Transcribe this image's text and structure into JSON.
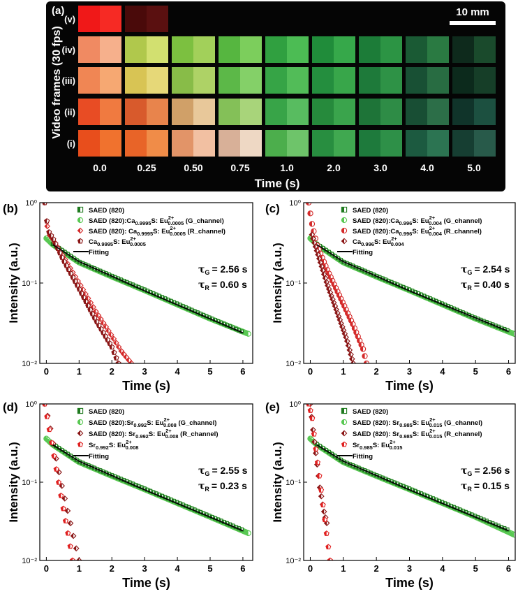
{
  "panel_a": {
    "tag": "(a)",
    "scale_bar_label": "10 mm",
    "y_title": "Video frames (30 fps)",
    "x_title": "Time (s)",
    "time_labels": [
      "0.0",
      "0.25",
      "0.50",
      "0.75",
      "1.0",
      "2.0",
      "3.0",
      "4.0",
      "5.0"
    ],
    "row_labels": [
      "(v)",
      "(iv)",
      "(iii)",
      "(ii)",
      "(i)"
    ],
    "rows": [
      {
        "label": "(v)",
        "frames": [
          [
            "#f01818",
            "#f62a24"
          ],
          [
            "#4a0a0a",
            "#5a1010"
          ]
        ]
      },
      {
        "label": "(iv)",
        "frames": [
          [
            "#f08a62",
            "#f6b08c"
          ],
          [
            "#b0c84c",
            "#d2e070"
          ],
          [
            "#7cc040",
            "#a2d05a"
          ],
          [
            "#56b640",
            "#7cce5c"
          ],
          [
            "#30a040",
            "#4cbc54"
          ],
          [
            "#208c3a",
            "#36a84a"
          ],
          [
            "#1c7c38",
            "#2c9444"
          ],
          [
            "#1a5a34",
            "#2a7a42"
          ],
          [
            "#0e2a1c",
            "#1a4a2c"
          ]
        ]
      },
      {
        "label": "(iii)",
        "frames": [
          [
            "#f08654",
            "#f6a872"
          ],
          [
            "#d8c454",
            "#e6d878"
          ],
          [
            "#88bc48",
            "#aed266"
          ],
          [
            "#5cb848",
            "#84d068"
          ],
          [
            "#36a446",
            "#52bc58"
          ],
          [
            "#248e3e",
            "#38a64a"
          ],
          [
            "#1e7a3a",
            "#2e9246"
          ],
          [
            "#185034",
            "#286c42"
          ],
          [
            "#0c2a1c",
            "#163e28"
          ]
        ]
      },
      {
        "label": "(ii)",
        "frames": [
          [
            "#e84c24",
            "#f07a40"
          ],
          [
            "#d85a2c",
            "#e8844c"
          ],
          [
            "#d0a068",
            "#e8c89a"
          ],
          [
            "#84c058",
            "#a8d47a"
          ],
          [
            "#38a448",
            "#58bc60"
          ],
          [
            "#268a3c",
            "#3aa44c"
          ],
          [
            "#1e7438",
            "#2e8c46"
          ],
          [
            "#184e34",
            "#2c6e48"
          ],
          [
            "#10342a",
            "#1c5040"
          ]
        ]
      },
      {
        "label": "(i)",
        "frames": [
          [
            "#e84e1c",
            "#f0722e"
          ],
          [
            "#e86428",
            "#f08c48"
          ],
          [
            "#e29468",
            "#f2c0a2"
          ],
          [
            "#d8b098",
            "#eed8c4"
          ],
          [
            "#4cae4c",
            "#6ec46a"
          ],
          [
            "#288e40",
            "#40a850"
          ],
          [
            "#1e7a3c",
            "#2e9048"
          ],
          [
            "#1c5a40",
            "#2c7452"
          ],
          [
            "#163e32",
            "#285a4a"
          ]
        ]
      }
    ]
  },
  "panels": [
    {
      "tag": "(b)",
      "ylabel": "Intensity (a.u.)",
      "xlabel": "Time (s)",
      "legend": [
        {
          "name": "SAED (820)",
          "marker": "square-half",
          "color": "#1f7a1f"
        },
        {
          "name": "SAED (820):Ca",
          "sub1": "0.9995",
          "mid": "S: Eu",
          "sup": "2+",
          "sub2": "0.0005",
          "tail": " (G_channel)",
          "marker": "circle-half",
          "color": "#59c853"
        },
        {
          "name": "SAED (820): Ca",
          "sub1": "0.9995",
          "mid": "S: Eu",
          "sup": "2+",
          "sub2": "0.0005",
          "tail": " (R_channel)",
          "marker": "diamond-half",
          "color": "#d42a2a"
        },
        {
          "name": "Ca",
          "sub1": "0.9995",
          "mid": "S: Eu",
          "sup": "2+",
          "sub2": "0.0005",
          "tail": "",
          "marker": "pentagon-half",
          "color": "#8a1515"
        },
        {
          "name": "Fitting",
          "marker": "line",
          "color": "#000000"
        }
      ],
      "tau_g": "= 2.56 s",
      "tau_r": "= 0.60 s",
      "xticks": [
        "0",
        "1",
        "2",
        "3",
        "4",
        "5",
        "6"
      ],
      "yticks": [
        "10⁻²",
        "10⁻¹",
        "10⁰"
      ]
    },
    {
      "tag": "(c)",
      "ylabel": "Intensity (a.u.)",
      "xlabel": "Time (s)",
      "legend": [
        {
          "name": "SAED (820)",
          "marker": "square-half",
          "color": "#1f7a1f"
        },
        {
          "name": "SAED (820):Ca",
          "sub1": "0.996",
          "mid": "S: Eu",
          "sup": "2+",
          "sub2": "0.004",
          "tail": " (G_channel)",
          "marker": "circle-half",
          "color": "#59c853"
        },
        {
          "name": "SAED (820):Ca",
          "sub1": "0.996",
          "mid": "S: Eu",
          "sup": "2+",
          "sub2": "0.004",
          "tail": " (R_channel)",
          "marker": "circle-half",
          "color": "#d42a2a"
        },
        {
          "name": "Ca",
          "sub1": "0.996",
          "mid": "S: Eu",
          "sup": "2+",
          "sub2": "0.004",
          "tail": "",
          "marker": "diamond-half",
          "color": "#8a1515"
        },
        {
          "name": "Fitting",
          "marker": "line",
          "color": "#000000"
        }
      ],
      "tau_g": "= 2.54 s",
      "tau_r": "= 0.40 s",
      "xticks": [
        "0",
        "1",
        "2",
        "3",
        "4",
        "5",
        "6"
      ],
      "yticks": [
        "10⁻²",
        "10⁻¹",
        "10⁰"
      ]
    },
    {
      "tag": "(d)",
      "ylabel": "Intensity (a.u.)",
      "xlabel": "Time (s)",
      "legend": [
        {
          "name": "SAED (820)",
          "marker": "square-half",
          "color": "#1f7a1f"
        },
        {
          "name": "SAED (820):Sr",
          "sub1": "0.992",
          "mid": "S: Eu",
          "sup": "2+",
          "sub2": "0.008",
          "tail": " (G_channel)",
          "marker": "circle-half",
          "color": "#59c853"
        },
        {
          "name": "SAED (820): Sr",
          "sub1": "0.992",
          "mid": "S: Eu",
          "sup": "2+",
          "sub2": "0.008",
          "tail": " (R_channel)",
          "marker": "diamond-half",
          "color": "#8a1515"
        },
        {
          "name": "Sr",
          "sub1": "0.992",
          "mid": "S: Eu",
          "sup": "2+",
          "sub2": "0.008",
          "tail": "",
          "marker": "pentagon-half",
          "color": "#e02020"
        },
        {
          "name": "Fitting",
          "marker": "line",
          "color": "#000000"
        }
      ],
      "tau_g": "= 2.55 s",
      "tau_r": "= 0.23 s",
      "xticks": [
        "0",
        "1",
        "2",
        "3",
        "4",
        "5",
        "6"
      ],
      "yticks": [
        "10⁻²",
        "10⁻¹",
        "10⁰"
      ]
    },
    {
      "tag": "(e)",
      "ylabel": "Intensity (a.u.)",
      "xlabel": "Time (s)",
      "legend": [
        {
          "name": "SAED (820)",
          "marker": "square-half",
          "color": "#1f7a1f"
        },
        {
          "name": "SAED (820): Sr",
          "sub1": "0.985",
          "mid": "S: Eu",
          "sup": "2+",
          "sub2": "0.015",
          "tail": " (G_channel)",
          "marker": "circle-half",
          "color": "#59c853"
        },
        {
          "name": "SAED (820): Sr",
          "sub1": "0.985",
          "mid": "S: Eu",
          "sup": "2+",
          "sub2": "0.015",
          "tail": " (R_channel)",
          "marker": "diamond-half",
          "color": "#8a1515"
        },
        {
          "name": "Sr",
          "sub1": "0.985",
          "mid": "S: Eu",
          "sup": "2+",
          "sub2": "0.015",
          "tail": "",
          "marker": "pentagon-half",
          "color": "#e02020"
        },
        {
          "name": "Fitting",
          "marker": "line",
          "color": "#000000"
        }
      ],
      "tau_g": "= 2.56 s",
      "tau_r": "= 0.15 s",
      "xticks": [
        "0",
        "1",
        "2",
        "3",
        "4",
        "5",
        "6"
      ],
      "yticks": [
        "10⁻²",
        "10⁻¹",
        "10⁰"
      ]
    }
  ],
  "chart_data": [
    {
      "type": "scatter",
      "panel": "(b)",
      "xlabel": "Time (s)",
      "ylabel": "Intensity (a.u.)",
      "xlim": [
        -0.2,
        6.3
      ],
      "ylim": [
        0.01,
        1
      ],
      "yscale": "log",
      "series": [
        {
          "name": "SAED (820)",
          "x": [
            0.2,
            1,
            2,
            3,
            4,
            5,
            6
          ],
          "y": [
            0.3,
            0.18,
            0.12,
            0.081,
            0.054,
            0.036,
            0.024
          ]
        },
        {
          "name": "SAED (820):Ca0.9995S: Eu2+0.0005 (G_channel)",
          "x": [
            0,
            0.2,
            1,
            2,
            3,
            4,
            5,
            6.2
          ],
          "y": [
            0.36,
            0.3,
            0.18,
            0.12,
            0.081,
            0.054,
            0.036,
            0.023
          ]
        },
        {
          "name": "SAED (820): Ca0.9995S: Eu2+0.0005 (R_channel)",
          "x": [
            -0.05,
            0.05,
            0.2,
            0.5,
            1,
            1.5,
            2,
            2.3,
            2.6
          ],
          "y": [
            1,
            0.42,
            0.35,
            0.22,
            0.1,
            0.045,
            0.022,
            0.014,
            0.01
          ]
        },
        {
          "name": "Ca0.9995S: Eu2+0.0005",
          "x": [
            -0.05,
            0.05,
            0.2,
            0.5,
            1,
            1.5,
            2,
            2.2
          ],
          "y": [
            1,
            0.45,
            0.36,
            0.2,
            0.085,
            0.035,
            0.016,
            0.01
          ]
        },
        {
          "name": "Fitting",
          "x": [
            0.2,
            6
          ],
          "y": [
            0.3,
            0.024
          ]
        }
      ]
    },
    {
      "type": "scatter",
      "panel": "(c)",
      "xlabel": "Time (s)",
      "ylabel": "Intensity (a.u.)",
      "xlim": [
        -0.2,
        6.2
      ],
      "ylim": [
        0.01,
        1
      ],
      "yscale": "log",
      "series": [
        {
          "name": "SAED (820)",
          "x": [
            0.2,
            1,
            2,
            3,
            4,
            5,
            6
          ],
          "y": [
            0.3,
            0.18,
            0.12,
            0.081,
            0.054,
            0.036,
            0.025
          ]
        },
        {
          "name": "SAED (820):Ca0.996S: Eu2+0.004 (G_channel)",
          "x": [
            0,
            0.2,
            1,
            2,
            3,
            4,
            5,
            6.2
          ],
          "y": [
            0.36,
            0.3,
            0.18,
            0.12,
            0.081,
            0.054,
            0.036,
            0.023
          ]
        },
        {
          "name": "SAED (820):Ca0.996S: Eu2+0.004 (R_channel)",
          "x": [
            -0.05,
            0.05,
            0.2,
            0.5,
            1,
            1.3,
            1.6,
            1.7
          ],
          "y": [
            1,
            0.55,
            0.3,
            0.15,
            0.055,
            0.03,
            0.015,
            0.01
          ]
        },
        {
          "name": "Ca0.996S: Eu2+0.004",
          "x": [
            0.05,
            0.2,
            0.5,
            0.8,
            1.1,
            1.3
          ],
          "y": [
            0.4,
            0.25,
            0.1,
            0.045,
            0.02,
            0.01
          ]
        },
        {
          "name": "Fitting",
          "x": [
            0.2,
            6
          ],
          "y": [
            0.3,
            0.025
          ]
        }
      ]
    },
    {
      "type": "scatter",
      "panel": "(d)",
      "xlabel": "Time (s)",
      "ylabel": "Intensity (a.u.)",
      "xlim": [
        -0.2,
        6.3
      ],
      "ylim": [
        0.01,
        1
      ],
      "yscale": "log",
      "series": [
        {
          "name": "SAED (820)",
          "x": [
            0.2,
            1,
            2,
            3,
            4,
            5,
            6
          ],
          "y": [
            0.3,
            0.18,
            0.12,
            0.081,
            0.054,
            0.036,
            0.024
          ]
        },
        {
          "name": "SAED (820):Sr0.992S: Eu2+0.008 (G_channel)",
          "x": [
            0,
            0.2,
            1,
            2,
            3,
            4,
            5,
            6.2
          ],
          "y": [
            0.36,
            0.3,
            0.18,
            0.12,
            0.081,
            0.054,
            0.036,
            0.022
          ]
        },
        {
          "name": "SAED (820): Sr0.992S: Eu2+0.008 (R_channel)",
          "x": [
            -0.05,
            0.1,
            0.3,
            0.5,
            0.7,
            0.9,
            1.0
          ],
          "y": [
            1,
            0.55,
            0.2,
            0.08,
            0.035,
            0.015,
            0.01
          ]
        },
        {
          "name": "Sr0.992S: Eu2+0.008",
          "x": [
            -0.05,
            0.1,
            0.3,
            0.5,
            0.7,
            0.8
          ],
          "y": [
            1,
            0.45,
            0.15,
            0.05,
            0.018,
            0.01
          ]
        },
        {
          "name": "Fitting",
          "x": [
            0.2,
            6
          ],
          "y": [
            0.3,
            0.024
          ]
        }
      ]
    },
    {
      "type": "scatter",
      "panel": "(e)",
      "xlabel": "Time (s)",
      "ylabel": "Intensity (a.u.)",
      "xlim": [
        -0.2,
        6.2
      ],
      "ylim": [
        0.01,
        1
      ],
      "yscale": "log",
      "series": [
        {
          "name": "SAED (820)",
          "x": [
            0.2,
            1,
            2,
            3,
            4,
            5,
            6
          ],
          "y": [
            0.3,
            0.18,
            0.12,
            0.081,
            0.054,
            0.036,
            0.024
          ]
        },
        {
          "name": "SAED (820): Sr0.985S: Eu2+0.015 (G_channel)",
          "x": [
            0,
            0.2,
            1,
            2,
            3,
            4,
            5,
            6.2
          ],
          "y": [
            0.36,
            0.3,
            0.18,
            0.12,
            0.081,
            0.054,
            0.036,
            0.021
          ]
        },
        {
          "name": "SAED (820): Sr0.985S: Eu2+0.015 (R_channel)",
          "x": [
            0,
            0.1,
            0.2,
            0.3,
            0.4,
            0.5
          ],
          "y": [
            1,
            0.4,
            0.18,
            0.08,
            0.045,
            0.03
          ]
        },
        {
          "name": "Sr0.985S: Eu2+0.015",
          "x": [
            -0.05,
            0.05,
            0.15,
            0.3,
            0.45,
            0.6
          ],
          "y": [
            1,
            0.7,
            0.3,
            0.1,
            0.03,
            0.01
          ]
        },
        {
          "name": "Fitting",
          "x": [
            0.2,
            6
          ],
          "y": [
            0.3,
            0.024
          ]
        }
      ]
    }
  ]
}
